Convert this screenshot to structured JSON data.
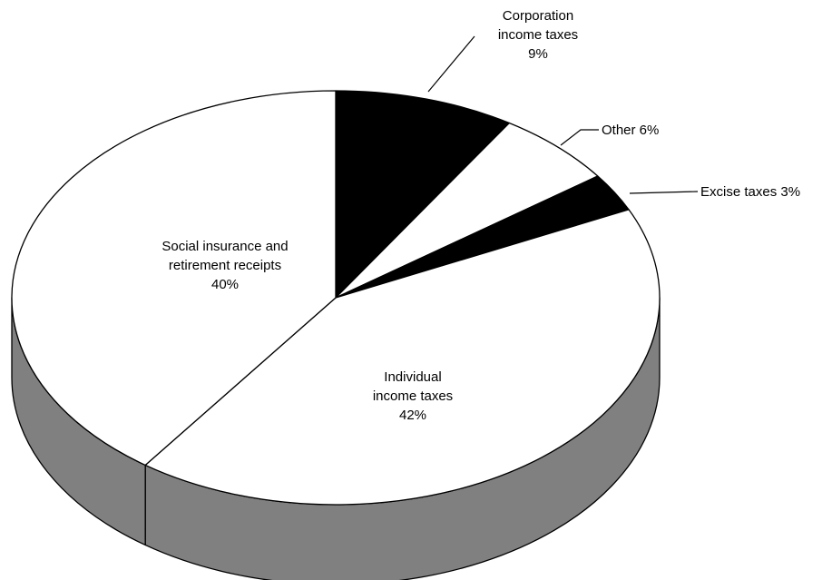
{
  "chart_data": {
    "type": "pie",
    "style": "3d",
    "slices": [
      {
        "label_lines": [
          "Corporation",
          "income taxes",
          "9%"
        ],
        "value": 9,
        "color": "#000000"
      },
      {
        "label_lines": [
          "Other 6%"
        ],
        "value": 6,
        "color": "#ffffff"
      },
      {
        "label_lines": [
          "Excise taxes 3%"
        ],
        "value": 3,
        "color": "#000000"
      },
      {
        "label_lines": [
          "Individual",
          "income taxes",
          "42%"
        ],
        "value": 42,
        "color": "#ffffff"
      },
      {
        "label_lines": [
          "Social insurance and",
          "retirement receipts",
          "40%"
        ],
        "value": 40,
        "color": "#ffffff"
      }
    ],
    "side_color": "#808080",
    "legend": "none"
  }
}
